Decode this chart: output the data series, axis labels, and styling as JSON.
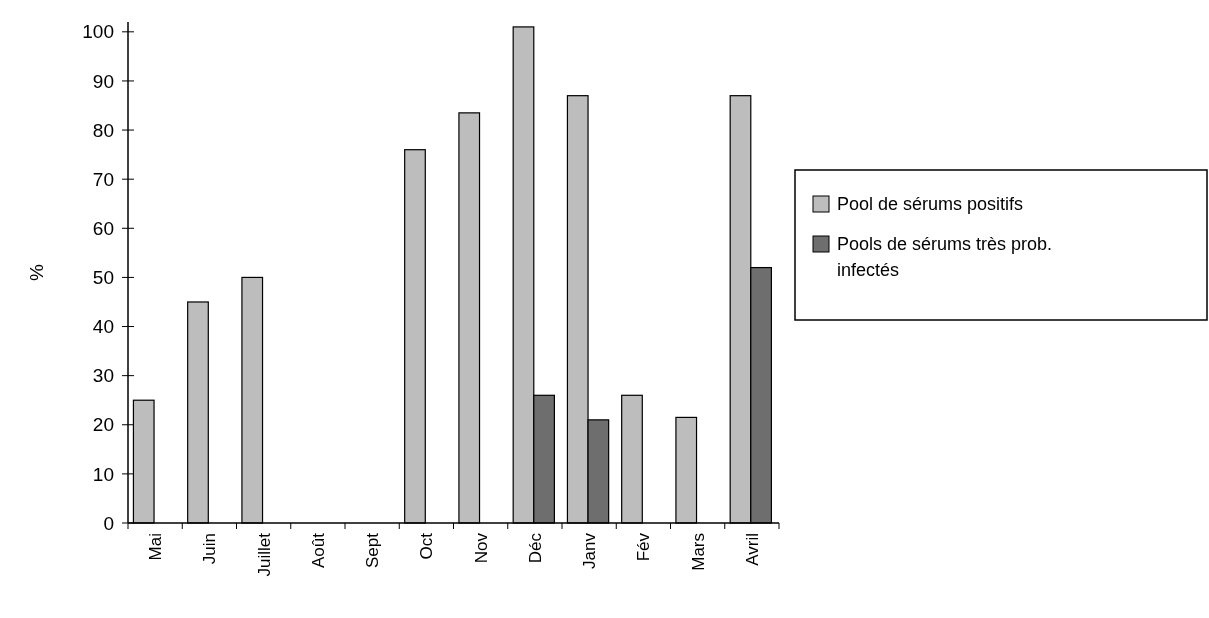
{
  "chart_data": {
    "type": "bar",
    "ylabel": "%",
    "categories": [
      "Mai",
      "Juin",
      "Juillet",
      "Août",
      "Sept",
      "Oct",
      "Nov",
      "Déc",
      "Janv",
      "Fév",
      "Mars",
      "Avril"
    ],
    "series": [
      {
        "name": "Pool de sérums positifs",
        "color": "#bdbdbd",
        "values": [
          25,
          45,
          50,
          0,
          0,
          76,
          83.5,
          101,
          87,
          26,
          21.5,
          87
        ]
      },
      {
        "name": "Pools de sérums très prob. infectés",
        "color": "#6e6e6e",
        "values": [
          null,
          null,
          null,
          null,
          null,
          null,
          null,
          26,
          21,
          null,
          null,
          52
        ]
      }
    ],
    "ylim": [
      0,
      102
    ],
    "yticks": [
      0,
      10,
      20,
      30,
      40,
      50,
      60,
      70,
      80,
      90,
      100
    ],
    "grid": false,
    "legend": "right"
  }
}
